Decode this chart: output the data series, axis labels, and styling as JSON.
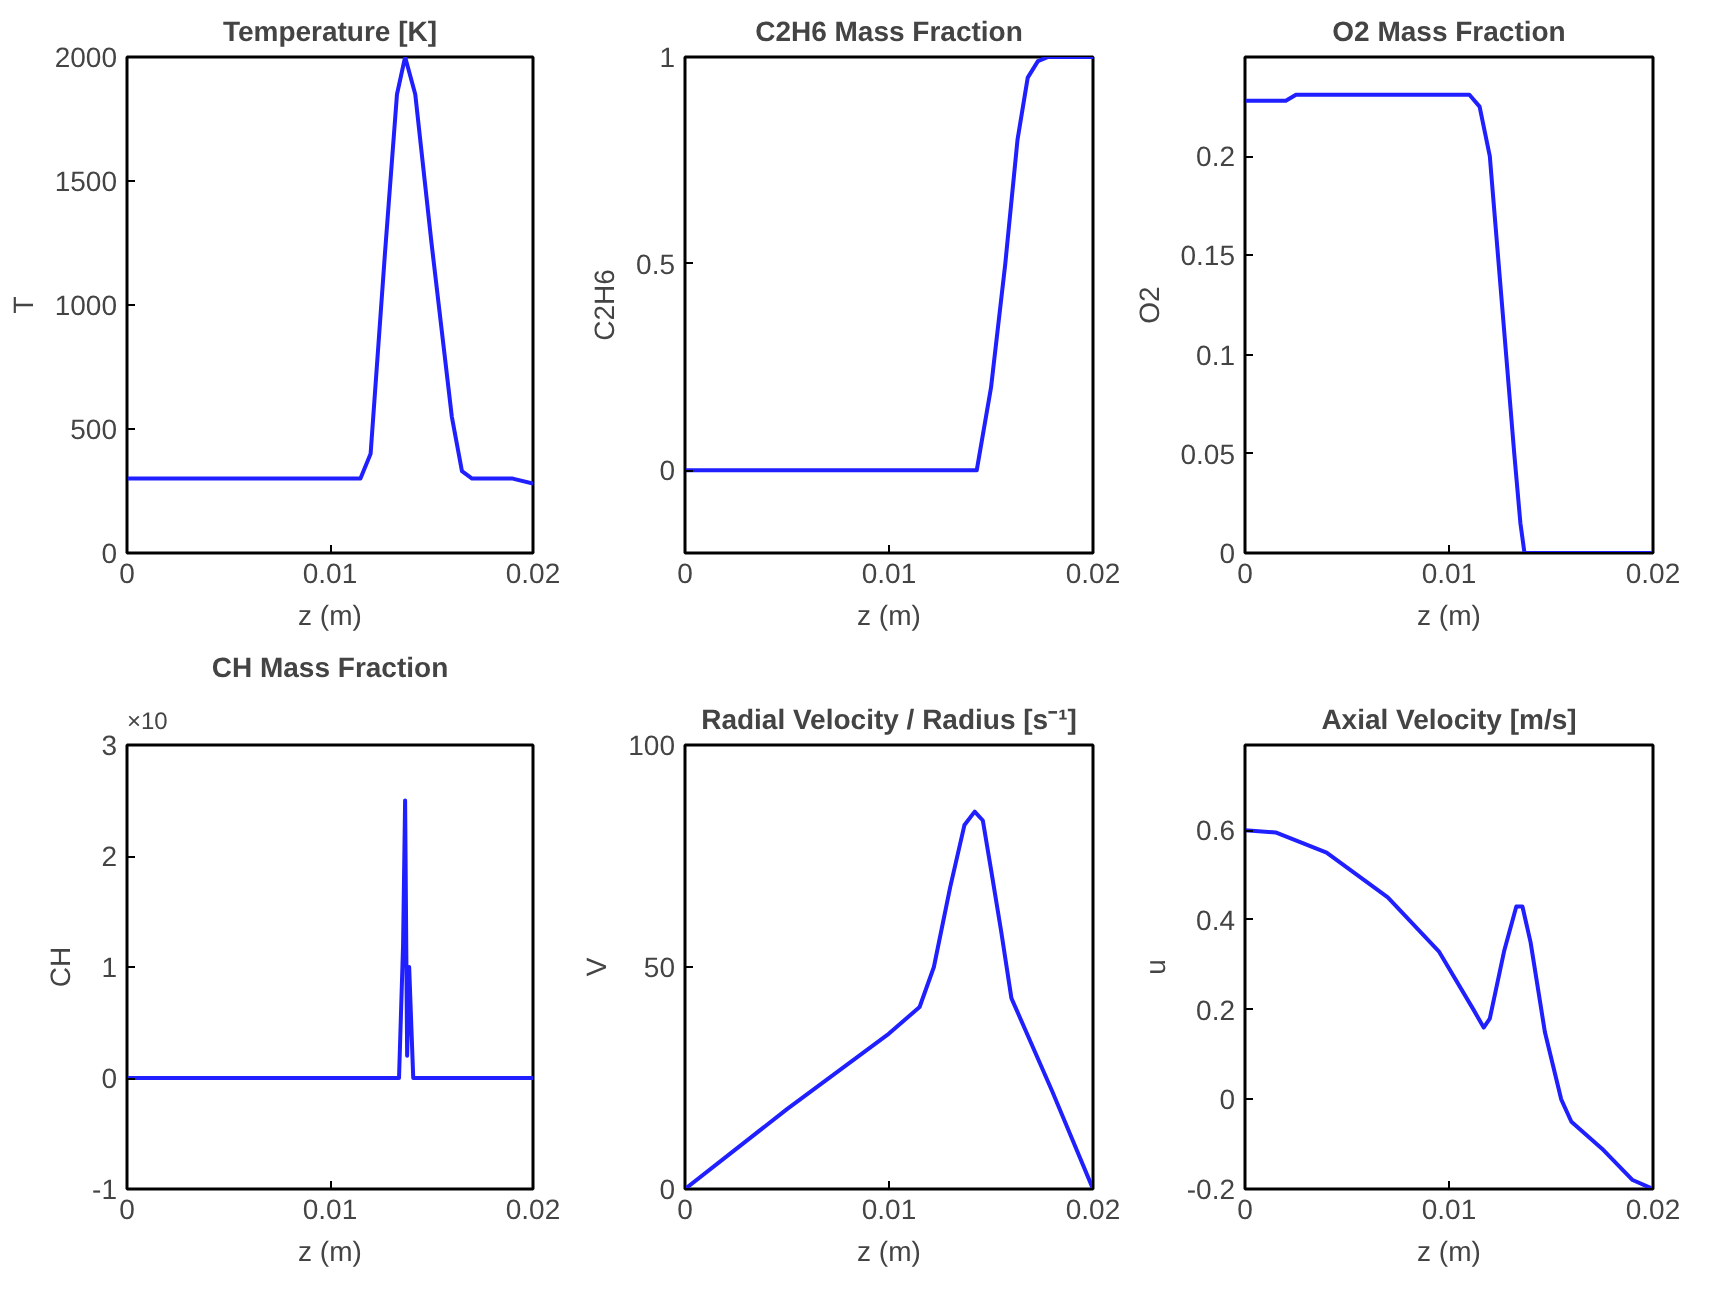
{
  "chart_data": [
    {
      "type": "line",
      "title": "Temperature [K]",
      "xlabel": "z (m)",
      "ylabel": "T",
      "grid": false,
      "xlim": [
        0,
        0.02
      ],
      "xticks": [
        0,
        0.01,
        0.02
      ],
      "ylim": [
        0,
        2000
      ],
      "yticks": [
        0,
        500,
        1000,
        1500,
        2000
      ],
      "x": [
        0,
        0.005,
        0.0115,
        0.012,
        0.0127,
        0.0133,
        0.0137,
        0.0142,
        0.015,
        0.016,
        0.0165,
        0.017,
        0.019,
        0.02
      ],
      "series": [
        {
          "color": "#1f1fff",
          "values": [
            300,
            300,
            300,
            400,
            1200,
            1850,
            2000,
            1850,
            1250,
            550,
            330,
            300,
            300,
            280
          ]
        }
      ]
    },
    {
      "type": "line",
      "title": "C2H6 Mass Fraction",
      "xlabel": "z (m)",
      "ylabel": "C2H6",
      "grid": false,
      "xlim": [
        0,
        0.02
      ],
      "xticks": [
        0,
        0.01,
        0.02
      ],
      "ylim": [
        -0.2,
        1
      ],
      "yticks": [
        0,
        0.5,
        1
      ],
      "x": [
        0,
        0.01,
        0.0143,
        0.015,
        0.0157,
        0.0163,
        0.0168,
        0.0173,
        0.0178,
        0.02
      ],
      "series": [
        {
          "color": "#1f1fff",
          "values": [
            0,
            0,
            0,
            0.2,
            0.5,
            0.8,
            0.95,
            0.99,
            1,
            1
          ]
        }
      ]
    },
    {
      "type": "line",
      "title": "O2 Mass Fraction",
      "xlabel": "z (m)",
      "ylabel": "O2",
      "grid": false,
      "xlim": [
        0,
        0.02
      ],
      "xticks": [
        0,
        0.01,
        0.02
      ],
      "ylim": [
        0,
        0.25
      ],
      "yticks": [
        0,
        0.05,
        0.1,
        0.15,
        0.2
      ],
      "x": [
        0,
        0.002,
        0.0025,
        0.011,
        0.0115,
        0.012,
        0.0124,
        0.0128,
        0.0132,
        0.0135,
        0.0137,
        0.015,
        0.02
      ],
      "series": [
        {
          "color": "#1f1fff",
          "values": [
            0.228,
            0.228,
            0.231,
            0.231,
            0.225,
            0.2,
            0.15,
            0.1,
            0.05,
            0.015,
            0,
            0,
            0
          ]
        }
      ]
    },
    {
      "type": "line",
      "title": "CH Mass Fraction",
      "xlabel": "z (m)",
      "ylabel": "CH",
      "annotations": [
        "×10"
      ],
      "grid": false,
      "xlim": [
        0,
        0.02
      ],
      "xticks": [
        0,
        0.01,
        0.02
      ],
      "ylim": [
        -1,
        3
      ],
      "yticks": [
        -1,
        0,
        1,
        2,
        3
      ],
      "x": [
        0,
        0.0134,
        0.0136,
        0.0137,
        0.0138,
        0.0139,
        0.0141,
        0.02
      ],
      "series": [
        {
          "color": "#1f1fff",
          "values": [
            0,
            0,
            1.2,
            2.5,
            0.2,
            1,
            0,
            0
          ]
        }
      ]
    },
    {
      "type": "line",
      "title": "Radial Velocity / Radius [s⁻¹]",
      "xlabel": "z (m)",
      "ylabel": "V",
      "grid": false,
      "xlim": [
        0,
        0.02
      ],
      "xticks": [
        0,
        0.01,
        0.02
      ],
      "ylim": [
        0,
        100
      ],
      "yticks": [
        0,
        50,
        100
      ],
      "x": [
        0,
        0.005,
        0.01,
        0.0115,
        0.0122,
        0.013,
        0.0137,
        0.0142,
        0.0146,
        0.015,
        0.0155,
        0.016,
        0.018,
        0.02
      ],
      "series": [
        {
          "color": "#1f1fff",
          "values": [
            0,
            18,
            35,
            41,
            50,
            68,
            82,
            85,
            83,
            72,
            58,
            43,
            22,
            0
          ]
        }
      ]
    },
    {
      "type": "line",
      "title": "Axial Velocity [m/s]",
      "xlabel": "z (m)",
      "ylabel": "u",
      "grid": false,
      "xlim": [
        0,
        0.02
      ],
      "xticks": [
        0,
        0.01,
        0.02
      ],
      "ylim": [
        -0.2,
        0.79
      ],
      "yticks": [
        -0.2,
        0,
        0.2,
        0.4,
        0.6
      ],
      "x": [
        0,
        0.0015,
        0.004,
        0.007,
        0.0095,
        0.0112,
        0.0117,
        0.012,
        0.0127,
        0.0133,
        0.0136,
        0.014,
        0.0147,
        0.0155,
        0.016,
        0.0175,
        0.019,
        0.02
      ],
      "series": [
        {
          "color": "#1f1fff",
          "values": [
            0.6,
            0.595,
            0.55,
            0.45,
            0.33,
            0.2,
            0.16,
            0.18,
            0.33,
            0.43,
            0.43,
            0.35,
            0.15,
            0.0,
            -0.05,
            -0.11,
            -0.18,
            -0.2
          ]
        }
      ]
    }
  ]
}
